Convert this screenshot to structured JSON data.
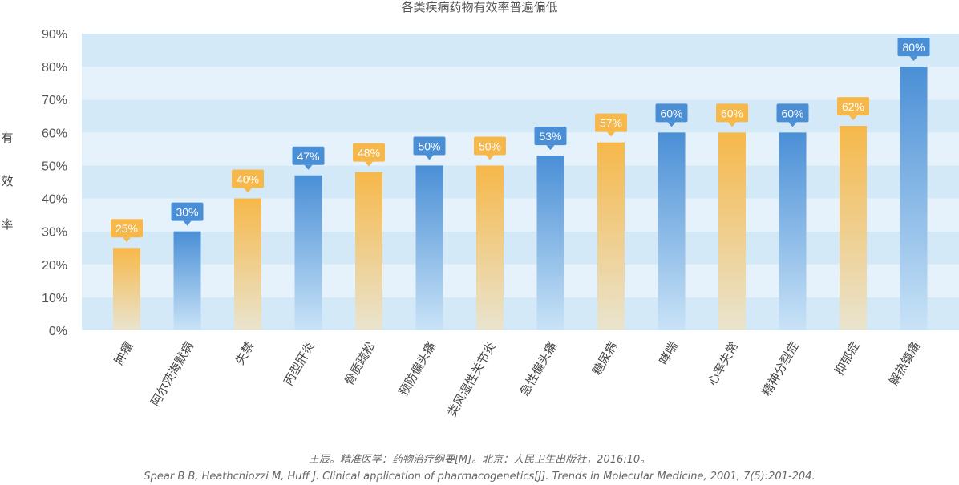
{
  "chart_data": {
    "type": "bar",
    "title": "各类疾病药物有效率普遍偏低",
    "ylabel": "有效率",
    "ylabel_chars": [
      "有",
      "效",
      "率"
    ],
    "xlabel": "",
    "ylim": [
      0,
      90
    ],
    "yticks": [
      0,
      10,
      20,
      30,
      40,
      50,
      60,
      70,
      80,
      90
    ],
    "ytick_labels": [
      "0%",
      "10%",
      "20%",
      "30%",
      "40%",
      "50%",
      "60%",
      "70%",
      "80%",
      "90%"
    ],
    "grid": "alternating horizontal bands",
    "categories": [
      "肿瘤",
      "阿尔茨海默病",
      "失禁",
      "丙型肝炎",
      "骨质疏松",
      "预防偏头痛",
      "类风湿性关节炎",
      "急性偏头痛",
      "糖尿病",
      "哮喘",
      "心率失常",
      "精神分裂症",
      "抑郁症",
      "解热镇痛"
    ],
    "values": [
      25,
      30,
      40,
      47,
      48,
      50,
      50,
      53,
      57,
      60,
      60,
      60,
      62,
      80
    ],
    "data_labels": [
      "25%",
      "30%",
      "40%",
      "47%",
      "48%",
      "50%",
      "50%",
      "53%",
      "57%",
      "60%",
      "60%",
      "60%",
      "62%",
      "80%"
    ],
    "bar_colors": [
      "orange",
      "blue",
      "orange",
      "blue",
      "orange",
      "blue",
      "orange",
      "blue",
      "orange",
      "blue",
      "orange",
      "blue",
      "orange",
      "blue"
    ]
  },
  "colors": {
    "blue": "#5B9BD5",
    "blue_top": "#4A8FD6",
    "blue_bottom": "#C9E3F7",
    "orange": "#F7BE58",
    "orange_top": "#F6B84A",
    "orange_bottom": "#E9E4CF",
    "band_dark": "#D3E9F7",
    "band_light": "#E6F2FB"
  },
  "source": {
    "line1": "王辰。精准医学：药物治疗纲要[M]。北京：人民卫生出版社，2016:10。",
    "line2": "Spear B B, Heathchiozzi M, Huff J. Clinical application of pharmacogenetics[J]. Trends in Molecular Medicine, 2001, 7(5):201-204."
  }
}
